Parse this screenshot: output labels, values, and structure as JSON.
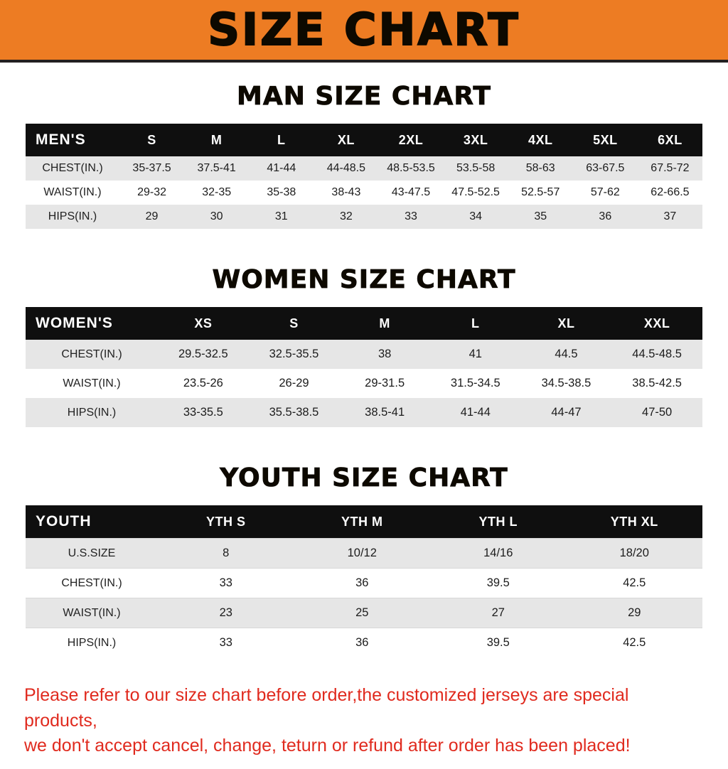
{
  "banner": {
    "title": "SIZE CHART",
    "background": "#ED7C23",
    "underline_color": "#231f20"
  },
  "chart_data": [
    {
      "type": "table",
      "title": "MAN SIZE CHART",
      "corner_label": "MEN'S",
      "columns": [
        "S",
        "M",
        "L",
        "XL",
        "2XL",
        "3XL",
        "4XL",
        "5XL",
        "6XL"
      ],
      "rows": [
        {
          "name": "CHEST(IN.)",
          "values": [
            "35-37.5",
            "37.5-41",
            "41-44",
            "44-48.5",
            "48.5-53.5",
            "53.5-58",
            "58-63",
            "63-67.5",
            "67.5-72"
          ]
        },
        {
          "name": "WAIST(IN.)",
          "values": [
            "29-32",
            "32-35",
            "35-38",
            "38-43",
            "43-47.5",
            "47.5-52.5",
            "52.5-57",
            "57-62",
            "62-66.5"
          ]
        },
        {
          "name": "HIPS(IN.)",
          "values": [
            "29",
            "30",
            "31",
            "32",
            "33",
            "34",
            "35",
            "36",
            "37"
          ]
        }
      ]
    },
    {
      "type": "table",
      "title": "WOMEN SIZE CHART",
      "corner_label": "WOMEN'S",
      "columns": [
        "XS",
        "S",
        "M",
        "L",
        "XL",
        "XXL"
      ],
      "rows": [
        {
          "name": "CHEST(IN.)",
          "values": [
            "29.5-32.5",
            "32.5-35.5",
            "38",
            "41",
            "44.5",
            "44.5-48.5"
          ]
        },
        {
          "name": "WAIST(IN.)",
          "values": [
            "23.5-26",
            "26-29",
            "29-31.5",
            "31.5-34.5",
            "34.5-38.5",
            "38.5-42.5"
          ]
        },
        {
          "name": "HIPS(IN.)",
          "values": [
            "33-35.5",
            "35.5-38.5",
            "38.5-41",
            "41-44",
            "44-47",
            "47-50"
          ]
        }
      ]
    },
    {
      "type": "table",
      "title": "YOUTH SIZE CHART",
      "corner_label": "YOUTH",
      "columns": [
        "YTH S",
        "YTH M",
        "YTH L",
        "YTH XL"
      ],
      "rows": [
        {
          "name": "U.S.SIZE",
          "values": [
            "8",
            "10/12",
            "14/16",
            "18/20"
          ]
        },
        {
          "name": "CHEST(IN.)",
          "values": [
            "33",
            "36",
            "39.5",
            "42.5"
          ]
        },
        {
          "name": "WAIST(IN.)",
          "values": [
            "23",
            "25",
            "27",
            "29"
          ]
        },
        {
          "name": "HIPS(IN.)",
          "values": [
            "33",
            "36",
            "39.5",
            "42.5"
          ]
        }
      ]
    }
  ],
  "footer": {
    "color": "#E02A1E",
    "lines": [
      "Please refer to our size chart before order,the customized jerseys are special products,",
      "we don't accept cancel, change, teturn or refund after order has been placed!"
    ]
  }
}
